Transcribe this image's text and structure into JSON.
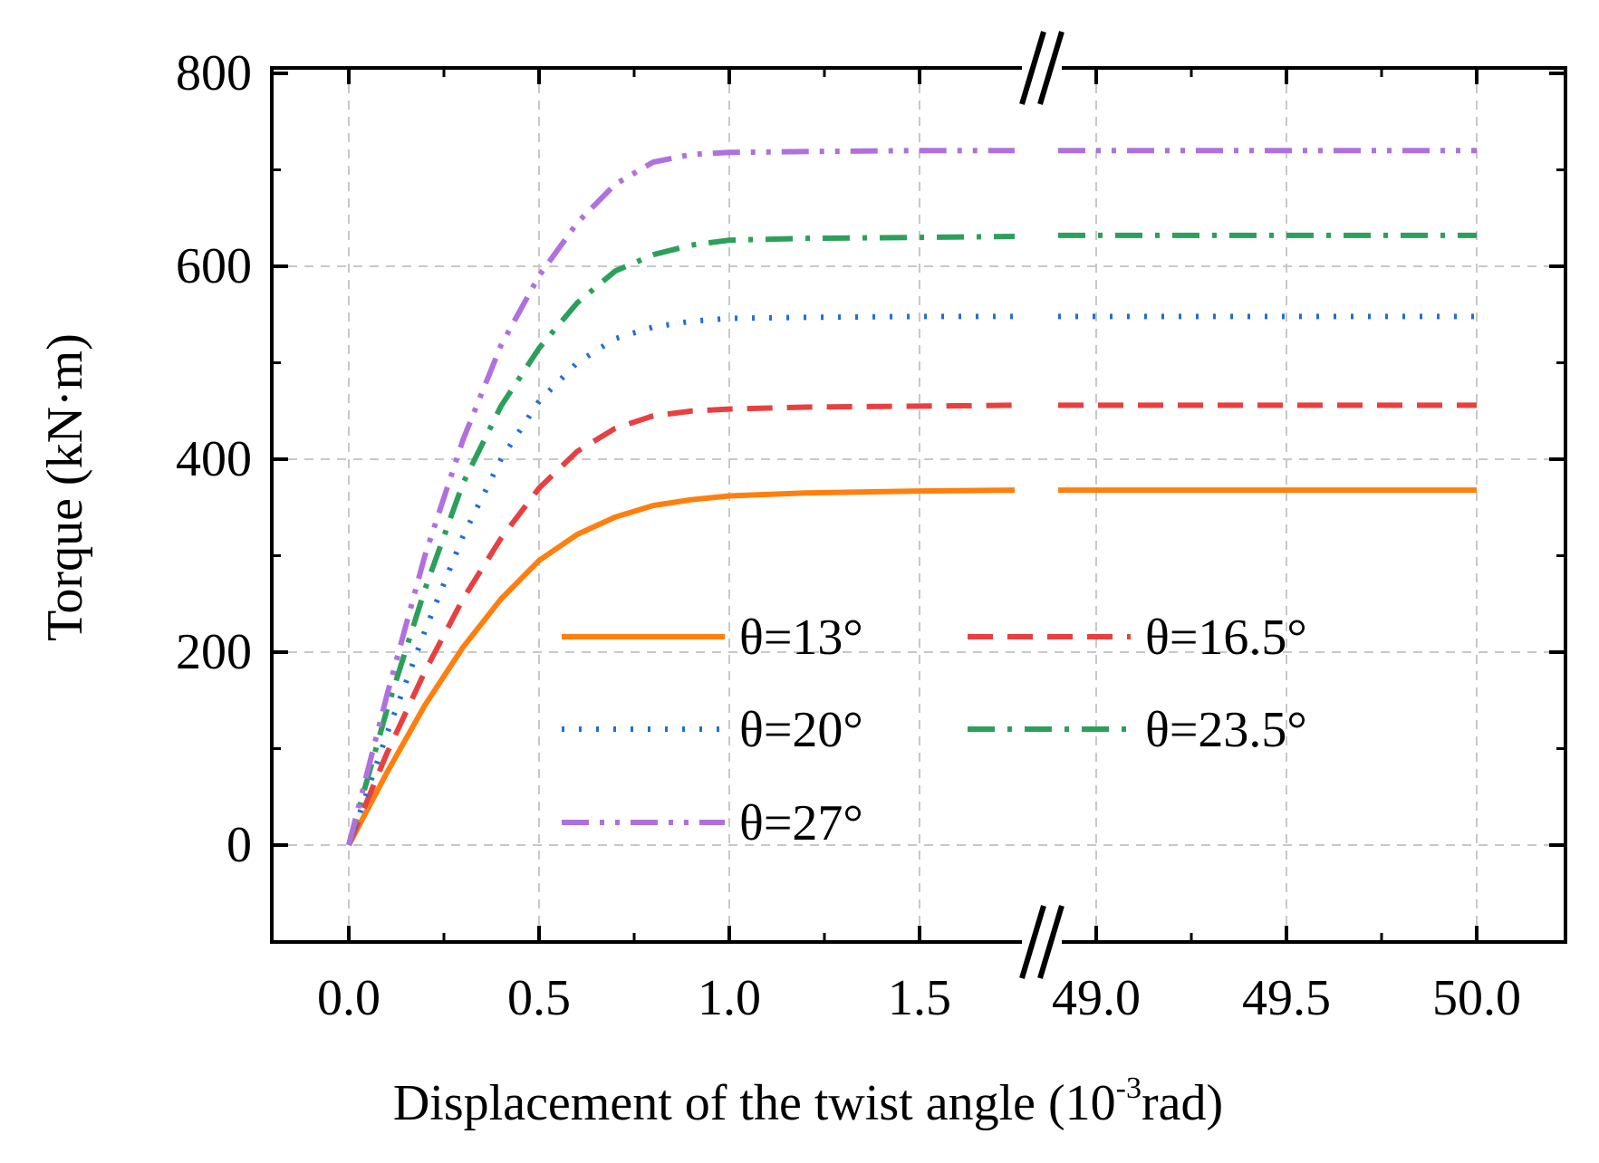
{
  "chart_data": {
    "type": "line",
    "xlabel": {
      "main": "Displacement of the twist angle (10",
      "sup": "-3",
      "tail": "rad)"
    },
    "ylabel": "Torque (kN·m)",
    "ylim": [
      -100,
      800
    ],
    "y_ticks": [
      0,
      200,
      400,
      600,
      800
    ],
    "y_tick_labels": [
      "0",
      "200",
      "400",
      "600",
      "800"
    ],
    "x_ticks_left": [
      0.0,
      0.5,
      1.0,
      1.5
    ],
    "x_ticks_left_labels": [
      "0.0",
      "0.5",
      "1.0",
      "1.5"
    ],
    "x_ticks_right": [
      49.0,
      49.5,
      50.0
    ],
    "x_ticks_right_labels": [
      "49.0",
      "49.5",
      "50.0"
    ],
    "x_segments": [
      {
        "xlim": [
          -0.2,
          1.75
        ]
      },
      {
        "xlim": [
          48.85,
          50.25
        ]
      }
    ],
    "grid": true,
    "axis_break": true,
    "legend_position": "lower-center",
    "series": [
      {
        "name": "θ=13°",
        "color": "#ff7f0e",
        "dash": "solid",
        "x": [
          0,
          0.1,
          0.2,
          0.3,
          0.4,
          0.5,
          0.6,
          0.7,
          0.8,
          0.9,
          1.0,
          1.2,
          1.5,
          1.75,
          48.9,
          49.5,
          50.0
        ],
        "y": [
          0,
          75,
          145,
          205,
          255,
          295,
          322,
          340,
          352,
          358,
          362,
          365,
          367,
          368,
          368,
          368,
          368
        ]
      },
      {
        "name": "θ=16.5°",
        "color": "#e84040",
        "dash": "dashed",
        "x": [
          0,
          0.1,
          0.2,
          0.3,
          0.4,
          0.5,
          0.6,
          0.7,
          0.8,
          0.9,
          1.0,
          1.2,
          1.5,
          1.75,
          48.9,
          49.5,
          50.0
        ],
        "y": [
          0,
          95,
          180,
          255,
          318,
          370,
          408,
          432,
          445,
          450,
          452,
          454,
          455,
          456,
          456,
          456,
          456
        ]
      },
      {
        "name": "θ=20°",
        "color": "#1f6fd6",
        "dash": "dotted",
        "x": [
          0,
          0.1,
          0.2,
          0.3,
          0.4,
          0.5,
          0.6,
          0.7,
          0.8,
          0.9,
          1.0,
          1.2,
          1.5,
          1.75,
          48.9,
          49.5,
          50.0
        ],
        "y": [
          0,
          115,
          222,
          320,
          400,
          460,
          500,
          525,
          537,
          543,
          546,
          547,
          548,
          548,
          548,
          548,
          548
        ]
      },
      {
        "name": "θ=23.5°",
        "color": "#2ca05a",
        "dash": "dashdot",
        "x": [
          0,
          0.1,
          0.2,
          0.3,
          0.4,
          0.5,
          0.6,
          0.7,
          0.8,
          0.9,
          1.0,
          1.2,
          1.5,
          1.75,
          48.9,
          49.5,
          50.0
        ],
        "y": [
          0,
          140,
          265,
          375,
          455,
          515,
          562,
          595,
          612,
          622,
          627,
          629,
          630,
          631,
          632,
          632,
          632
        ]
      },
      {
        "name": "θ=27°",
        "color": "#b070e0",
        "dash": "dashdotdot",
        "x": [
          0,
          0.1,
          0.2,
          0.3,
          0.4,
          0.5,
          0.6,
          0.7,
          0.8,
          0.9,
          1.0,
          1.2,
          1.5,
          1.75,
          48.9,
          49.5,
          50.0
        ],
        "y": [
          0,
          155,
          300,
          420,
          518,
          590,
          645,
          685,
          708,
          716,
          718,
          719,
          720,
          720,
          720,
          720,
          720
        ]
      }
    ]
  }
}
